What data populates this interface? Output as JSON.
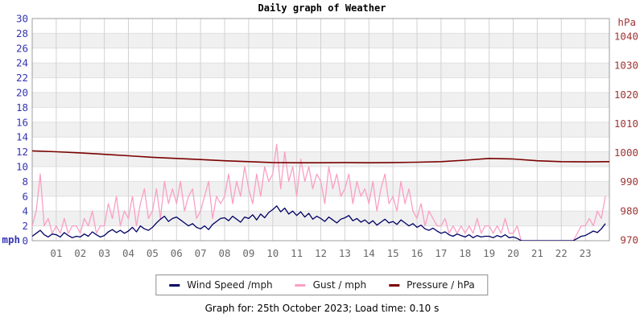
{
  "title": "Daily graph of Weather",
  "caption": "Graph for: 25th October 2023; Load time: 0.10 s",
  "chart_data": {
    "type": "line",
    "title": "Daily graph of Weather",
    "grid": true,
    "legend_position": "bottom",
    "x_axis": {
      "range_hours": [
        0,
        24
      ],
      "tick_labels": [
        "01",
        "02",
        "03",
        "04",
        "05",
        "06",
        "07",
        "08",
        "09",
        "10",
        "11",
        "12",
        "13",
        "14",
        "15",
        "16",
        "17",
        "18",
        "19",
        "20",
        "21",
        "22",
        "23"
      ],
      "color": "#696969"
    },
    "left_axis": {
      "label": "mph",
      "range": [
        0,
        30
      ],
      "ticks": [
        0,
        2,
        4,
        6,
        8,
        10,
        12,
        14,
        16,
        18,
        20,
        22,
        24,
        26,
        28,
        30
      ],
      "color": "#3535b2"
    },
    "right_axis": {
      "label": "hPa",
      "ticks": [
        970,
        980,
        990,
        1000,
        1010,
        1020,
        1030,
        1040
      ],
      "color": "#a03434"
    },
    "series": [
      {
        "id": "wind-speed",
        "name": "Wind Speed /mph",
        "axis": "left",
        "color": "#000066",
        "sample_interval_minutes": 10,
        "values": [
          0.6,
          1.0,
          1.4,
          0.8,
          0.5,
          0.9,
          0.8,
          0.5,
          1.1,
          0.7,
          0.4,
          0.6,
          0.5,
          0.9,
          0.6,
          1.2,
          0.8,
          0.5,
          0.7,
          1.2,
          1.5,
          1.1,
          1.4,
          1.0,
          1.3,
          1.8,
          1.2,
          2.0,
          1.6,
          1.4,
          1.8,
          2.4,
          2.9,
          3.3,
          2.6,
          3.0,
          3.2,
          2.8,
          2.4,
          2.0,
          2.3,
          1.8,
          1.6,
          2.0,
          1.5,
          2.2,
          2.6,
          3.0,
          3.1,
          2.7,
          3.3,
          2.9,
          2.5,
          3.2,
          3.0,
          3.5,
          2.8,
          3.6,
          3.1,
          3.8,
          4.2,
          4.7,
          3.9,
          4.4,
          3.6,
          4.0,
          3.4,
          3.9,
          3.2,
          3.7,
          2.9,
          3.3,
          3.0,
          2.6,
          3.2,
          2.8,
          2.4,
          2.9,
          3.1,
          3.4,
          2.7,
          3.0,
          2.5,
          2.8,
          2.3,
          2.7,
          2.1,
          2.5,
          2.9,
          2.4,
          2.6,
          2.2,
          2.8,
          2.4,
          2.0,
          2.3,
          1.8,
          2.1,
          1.6,
          1.4,
          1.7,
          1.3,
          1.0,
          1.2,
          0.8,
          0.6,
          0.9,
          0.7,
          0.5,
          0.8,
          0.4,
          0.7,
          0.5,
          0.6,
          0.6,
          0.4,
          0.7,
          0.5,
          0.8,
          0.4,
          0.5,
          0.3,
          0,
          0,
          0,
          0,
          0,
          0,
          0,
          0,
          0,
          0,
          0,
          0,
          0,
          0,
          0.3,
          0.6,
          0.7,
          1.0,
          1.3,
          1.1,
          1.6,
          2.3
        ]
      },
      {
        "id": "gust",
        "name": "Gust / mph",
        "axis": "left",
        "color": "#fa9fc4",
        "sample_interval_minutes": 10,
        "values": [
          2,
          4,
          9,
          2,
          3,
          1,
          2,
          1,
          3,
          1,
          2,
          2,
          1,
          3,
          2,
          4,
          1,
          2,
          2,
          5,
          3,
          6,
          2,
          4,
          3,
          6,
          2,
          5,
          7,
          3,
          4,
          7,
          3,
          8,
          5,
          7,
          5,
          8,
          4,
          6,
          7,
          3,
          4,
          6,
          8,
          3,
          6,
          5,
          6,
          9,
          5,
          8,
          6,
          10,
          7,
          5,
          9,
          6,
          10,
          8,
          9,
          13,
          7,
          12,
          8,
          10,
          6,
          11,
          8,
          10,
          7,
          9,
          8,
          5,
          10,
          7,
          9,
          6,
          7,
          9,
          5,
          8,
          6,
          7,
          5,
          8,
          4,
          7,
          9,
          5,
          6,
          4,
          8,
          5,
          7,
          4,
          3,
          5,
          2,
          4,
          3,
          2,
          2,
          3,
          1,
          2,
          1,
          2,
          1,
          2,
          1,
          3,
          1,
          2,
          2,
          1,
          2,
          1,
          3,
          1,
          1,
          2,
          0,
          0,
          0,
          0,
          0,
          0,
          0,
          0,
          0,
          0,
          0,
          0,
          0,
          0,
          1,
          2,
          2,
          3,
          2,
          4,
          3,
          6
        ]
      },
      {
        "id": "pressure",
        "name": "Pressure / hPa",
        "axis": "right",
        "color": "#7b0000",
        "sample_interval_minutes": 60,
        "values": [
          1000.6,
          1000.3,
          999.9,
          999.4,
          998.9,
          998.4,
          998.0,
          997.6,
          997.2,
          996.9,
          996.6,
          996.5,
          996.5,
          996.6,
          996.5,
          996.6,
          996.7,
          996.9,
          997.4,
          998.0,
          997.8,
          997.2,
          996.9,
          996.8,
          996.9
        ]
      }
    ]
  }
}
